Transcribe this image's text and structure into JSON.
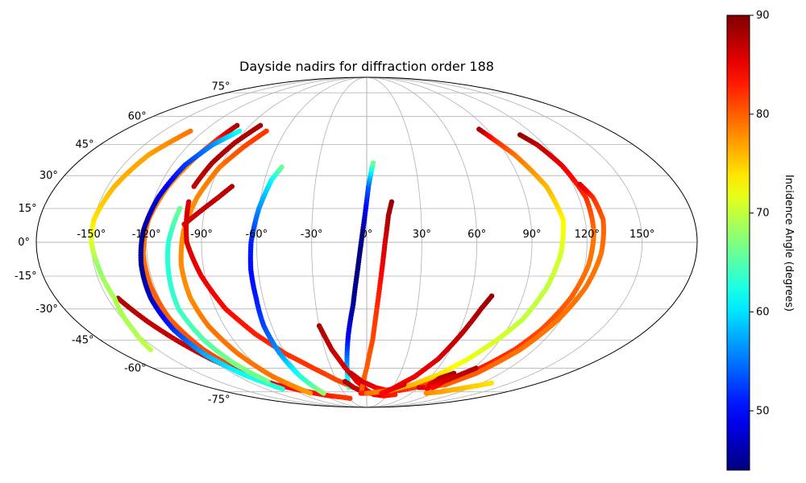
{
  "chart_data": {
    "type": "scatter",
    "projection": "mollweide",
    "title": "Dayside nadirs for diffraction order 188",
    "xlabel": "",
    "ylabel": "",
    "grid": true,
    "lon_ticks": [
      -150,
      -120,
      -90,
      -60,
      -30,
      0,
      30,
      60,
      90,
      120,
      150
    ],
    "lon_tick_labels": [
      "-150°",
      "-120°",
      "-90°",
      "-60°",
      "-30°",
      "0°",
      "30°",
      "60°",
      "90°",
      "120°",
      "150°"
    ],
    "lat_ticks": [
      -75,
      -60,
      -45,
      -30,
      -15,
      0,
      15,
      30,
      45,
      60,
      75
    ],
    "lat_tick_labels": [
      "-75°",
      "-60°",
      "-45°",
      "-30°",
      "-15°",
      "0°",
      "15°",
      "30°",
      "45°",
      "60°",
      "75°"
    ],
    "colorbar": {
      "label": "Incidence Angle (degrees)",
      "colormap": "jet",
      "range": [
        44,
        90
      ],
      "ticks": [
        50,
        60,
        70,
        80,
        90
      ],
      "tick_labels": [
        "50",
        "60",
        "70",
        "80",
        "90"
      ]
    },
    "series": [
      {
        "points": [
          [
            -102,
            -71,
            80
          ],
          [
            -110,
            -62,
            81
          ],
          [
            -117,
            -50,
            81
          ],
          [
            -121,
            -35,
            80
          ],
          [
            -122,
            -20,
            80
          ],
          [
            -122,
            -5,
            79
          ],
          [
            -120,
            10,
            79
          ],
          [
            -115,
            25,
            78
          ],
          [
            -108,
            40,
            78
          ],
          [
            -100,
            55,
            88
          ]
        ]
      },
      {
        "points": [
          [
            -144,
            -25,
            88
          ],
          [
            -136,
            -36,
            87
          ],
          [
            -128,
            -46,
            87
          ],
          [
            -120,
            -55,
            87
          ],
          [
            -110,
            -63,
            86
          ],
          [
            -98,
            -70,
            85
          ],
          [
            -85,
            -73,
            84
          ],
          [
            -70,
            -76,
            84
          ],
          [
            -55,
            -78,
            83
          ],
          [
            -40,
            -79,
            82
          ],
          [
            -28,
            -80,
            82
          ]
        ]
      },
      {
        "points": [
          [
            -100,
            -73,
            63
          ],
          [
            -112,
            -64,
            62
          ],
          [
            -120,
            -53,
            58
          ],
          [
            -124,
            -40,
            52
          ],
          [
            -125,
            -25,
            47
          ],
          [
            -124,
            -10,
            45
          ],
          [
            -122,
            5,
            45
          ],
          [
            -118,
            20,
            48
          ],
          [
            -112,
            35,
            52
          ],
          [
            -104,
            45,
            56
          ],
          [
            -94,
            52,
            62
          ]
        ]
      },
      {
        "points": [
          [
            -155,
            -50,
            70
          ],
          [
            -150,
            -40,
            69
          ],
          [
            -146,
            -25,
            69
          ],
          [
            -148,
            -10,
            68
          ],
          [
            -150,
            0,
            71
          ],
          [
            -150,
            10,
            74
          ],
          [
            -146,
            25,
            76
          ],
          [
            -140,
            40,
            77
          ],
          [
            -130,
            52,
            79
          ]
        ]
      },
      {
        "points": [
          [
            -100,
            -68,
            66
          ],
          [
            -106,
            -58,
            67
          ],
          [
            -110,
            -45,
            65
          ],
          [
            -112,
            -30,
            64
          ],
          [
            -110,
            -15,
            63
          ],
          [
            -108,
            0,
            63
          ],
          [
            -104,
            15,
            66
          ]
        ]
      },
      {
        "points": [
          [
            -76,
            -76,
            77
          ],
          [
            -88,
            -65,
            79
          ],
          [
            -95,
            -52,
            79
          ],
          [
            -100,
            -38,
            79
          ],
          [
            -102,
            -25,
            78
          ],
          [
            -102,
            -10,
            78
          ],
          [
            -100,
            5,
            78
          ],
          [
            -96,
            20,
            78
          ],
          [
            -90,
            34,
            79
          ],
          [
            -82,
            44,
            81
          ],
          [
            -74,
            52,
            82
          ]
        ]
      },
      {
        "points": [
          [
            -100,
            18,
            86
          ],
          [
            -98,
            0,
            86
          ],
          [
            -92,
            -15,
            85
          ],
          [
            -84,
            -30,
            84
          ],
          [
            -73,
            -42,
            83
          ],
          [
            -60,
            -52,
            82
          ],
          [
            -45,
            -60,
            82
          ],
          [
            -30,
            -67,
            81
          ],
          [
            -15,
            -72,
            81
          ],
          [
            0,
            -76,
            80
          ]
        ]
      },
      {
        "points": [
          [
            -78,
            25,
            88
          ],
          [
            -84,
            20,
            87
          ],
          [
            -92,
            14,
            87
          ],
          [
            -100,
            8,
            86
          ]
        ]
      },
      {
        "points": [
          [
            -82,
            55,
            88
          ],
          [
            -90,
            46,
            88
          ],
          [
            -96,
            36,
            88
          ],
          [
            -100,
            25,
            87
          ]
        ]
      },
      {
        "points": [
          [
            -58,
            -76,
            68
          ],
          [
            -62,
            -65,
            63
          ],
          [
            -64,
            -52,
            57
          ],
          [
            -65,
            -38,
            53
          ],
          [
            -64,
            -25,
            51
          ],
          [
            -64,
            -12,
            50
          ],
          [
            -63,
            0,
            51
          ],
          [
            -60,
            15,
            56
          ],
          [
            -56,
            28,
            61
          ],
          [
            -52,
            34,
            66
          ]
        ]
      },
      {
        "points": [
          [
            -20,
            -72,
            65
          ],
          [
            -16,
            -58,
            57
          ],
          [
            -12,
            -42,
            49
          ],
          [
            -8,
            -28,
            45
          ],
          [
            -5,
            -12,
            44
          ],
          [
            -3,
            0,
            44
          ],
          [
            -1,
            12,
            48
          ],
          [
            1,
            25,
            54
          ],
          [
            3,
            33,
            62
          ],
          [
            4,
            36,
            66
          ]
        ]
      },
      {
        "points": [
          [
            -30,
            -38,
            88
          ],
          [
            -25,
            -50,
            87
          ],
          [
            -18,
            -60,
            86
          ],
          [
            -10,
            -68,
            85
          ],
          [
            0,
            -74,
            85
          ],
          [
            10,
            -77,
            84
          ],
          [
            25,
            -78,
            84
          ],
          [
            40,
            -77,
            83
          ]
        ]
      },
      {
        "points": [
          [
            -22,
            -68,
            88
          ],
          [
            -15,
            -72,
            87
          ],
          [
            -5,
            -75,
            87
          ],
          [
            5,
            -76,
            86
          ],
          [
            20,
            -77,
            86
          ]
        ]
      },
      {
        "points": [
          [
            -6,
            -74,
            80
          ],
          [
            0,
            -60,
            80
          ],
          [
            4,
            -45,
            81
          ],
          [
            6,
            -30,
            82
          ],
          [
            8,
            -15,
            84
          ],
          [
            10,
            0,
            86
          ],
          [
            12,
            12,
            88
          ],
          [
            14,
            18,
            89
          ]
        ]
      },
      {
        "points": [
          [
            -14,
            -63,
            87
          ],
          [
            -5,
            -68,
            86
          ],
          [
            10,
            -72,
            85
          ],
          [
            25,
            -74,
            84
          ],
          [
            40,
            -74,
            83
          ],
          [
            55,
            -72,
            82
          ],
          [
            65,
            -68,
            81
          ]
        ]
      },
      {
        "points": [
          [
            -8,
            -76,
            83
          ],
          [
            10,
            -76,
            83
          ],
          [
            30,
            -73,
            84
          ],
          [
            45,
            -65,
            85
          ],
          [
            55,
            -55,
            86
          ],
          [
            62,
            -42,
            87
          ],
          [
            68,
            -30,
            88
          ],
          [
            72,
            -24,
            89
          ]
        ]
      },
      {
        "points": [
          [
            0,
            -76,
            79
          ],
          [
            30,
            -74,
            78
          ],
          [
            50,
            -70,
            76
          ],
          [
            65,
            -64,
            74
          ],
          [
            78,
            -55,
            72
          ],
          [
            88,
            -45,
            71
          ],
          [
            96,
            -35,
            70
          ],
          [
            102,
            -20,
            70
          ],
          [
            106,
            -5,
            71
          ],
          [
            108,
            10,
            73
          ],
          [
            104,
            25,
            76
          ],
          [
            95,
            40,
            79
          ],
          [
            88,
            48,
            83
          ],
          [
            84,
            53,
            88
          ]
        ]
      },
      {
        "points": [
          [
            60,
            -72,
            86
          ],
          [
            75,
            -72,
            85
          ],
          [
            88,
            -66,
            84
          ],
          [
            98,
            -58,
            83
          ],
          [
            106,
            -50,
            82
          ],
          [
            112,
            -40,
            81
          ],
          [
            118,
            -25,
            80
          ],
          [
            122,
            -10,
            79
          ],
          [
            124,
            5,
            79
          ],
          [
            124,
            20,
            82
          ],
          [
            120,
            35,
            85
          ],
          [
            115,
            45,
            87
          ],
          [
            110,
            50,
            89
          ]
        ]
      },
      {
        "points": [
          [
            70,
            -72,
            80
          ],
          [
            85,
            -70,
            80
          ],
          [
            98,
            -63,
            80
          ],
          [
            110,
            -50,
            79
          ],
          [
            118,
            -35,
            79
          ],
          [
            124,
            -20,
            79
          ],
          [
            128,
            -5,
            79
          ],
          [
            130,
            10,
            80
          ],
          [
            128,
            20,
            82
          ],
          [
            124,
            26,
            86
          ]
        ]
      },
      {
        "points": [
          [
            78,
            -63,
            88
          ],
          [
            70,
            -66,
            87
          ],
          [
            68,
            -70,
            86
          ],
          [
            72,
            -73,
            85
          ]
        ]
      },
      {
        "points": [
          [
            92,
            -60,
            88
          ],
          [
            85,
            -64,
            87
          ],
          [
            78,
            -68,
            86
          ],
          [
            76,
            -72,
            84
          ]
        ]
      },
      {
        "points": [
          [
            40,
            -70,
            86
          ],
          [
            30,
            -73,
            85
          ],
          [
            20,
            -76,
            84
          ]
        ]
      },
      {
        "points": [
          [
            80,
            -76,
            78
          ],
          [
            95,
            -75,
            77
          ],
          [
            108,
            -73,
            76
          ],
          [
            120,
            -71,
            75
          ],
          [
            130,
            -69,
            74
          ]
        ]
      }
    ]
  }
}
